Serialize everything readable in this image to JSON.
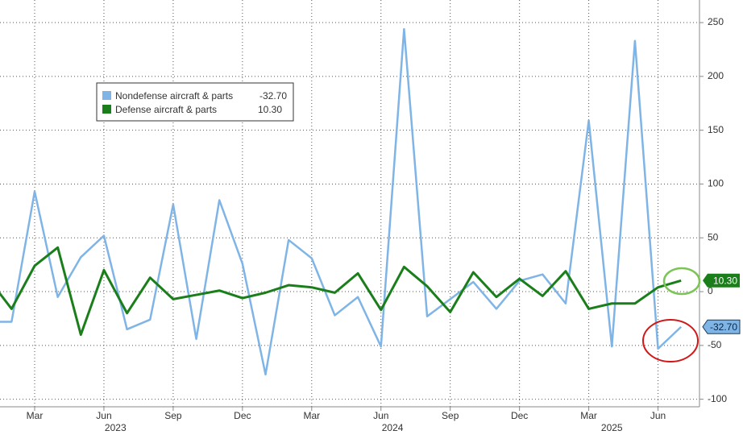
{
  "chart_data": {
    "type": "line",
    "categories": [
      null,
      null,
      "Mar",
      null,
      null,
      "Jun",
      null,
      null,
      "Sep",
      null,
      null,
      "Dec",
      null,
      null,
      "Mar",
      null,
      null,
      "Jun",
      null,
      null,
      "Sep",
      null,
      null,
      "Dec",
      null,
      null,
      "Mar",
      null,
      null,
      "Jun",
      null
    ],
    "year_labels": [
      "2023",
      "2024",
      "2025"
    ],
    "series": [
      {
        "name": "Nondefense aircraft & parts",
        "color": "#7fb4e6",
        "last_value_label": "-32.70",
        "values": [
          -28,
          -28,
          93,
          -5,
          32,
          52,
          -35,
          -26,
          81,
          -44,
          85,
          26,
          -77,
          48,
          31,
          -22,
          -5,
          -51,
          244,
          -23,
          -7,
          9,
          -16,
          10,
          16,
          -11,
          159,
          -51,
          233,
          -53,
          -32.7
        ]
      },
      {
        "name": "Defense aircraft & parts",
        "color": "#1a7f1a",
        "last_value_label": "10.30",
        "values": [
          12,
          -16,
          24,
          41,
          -40,
          20,
          -20,
          13,
          -7,
          -3,
          1,
          -6,
          -1,
          6,
          4,
          -1,
          17,
          -17,
          23,
          5,
          -19,
          18,
          -5,
          12,
          -4,
          19,
          -16,
          -11,
          -11,
          4,
          10.3
        ]
      }
    ],
    "ylim": [
      -107,
      271
    ],
    "yticks": [
      -100,
      -50,
      0,
      50,
      100,
      150,
      200,
      250
    ],
    "grid": true
  }
}
